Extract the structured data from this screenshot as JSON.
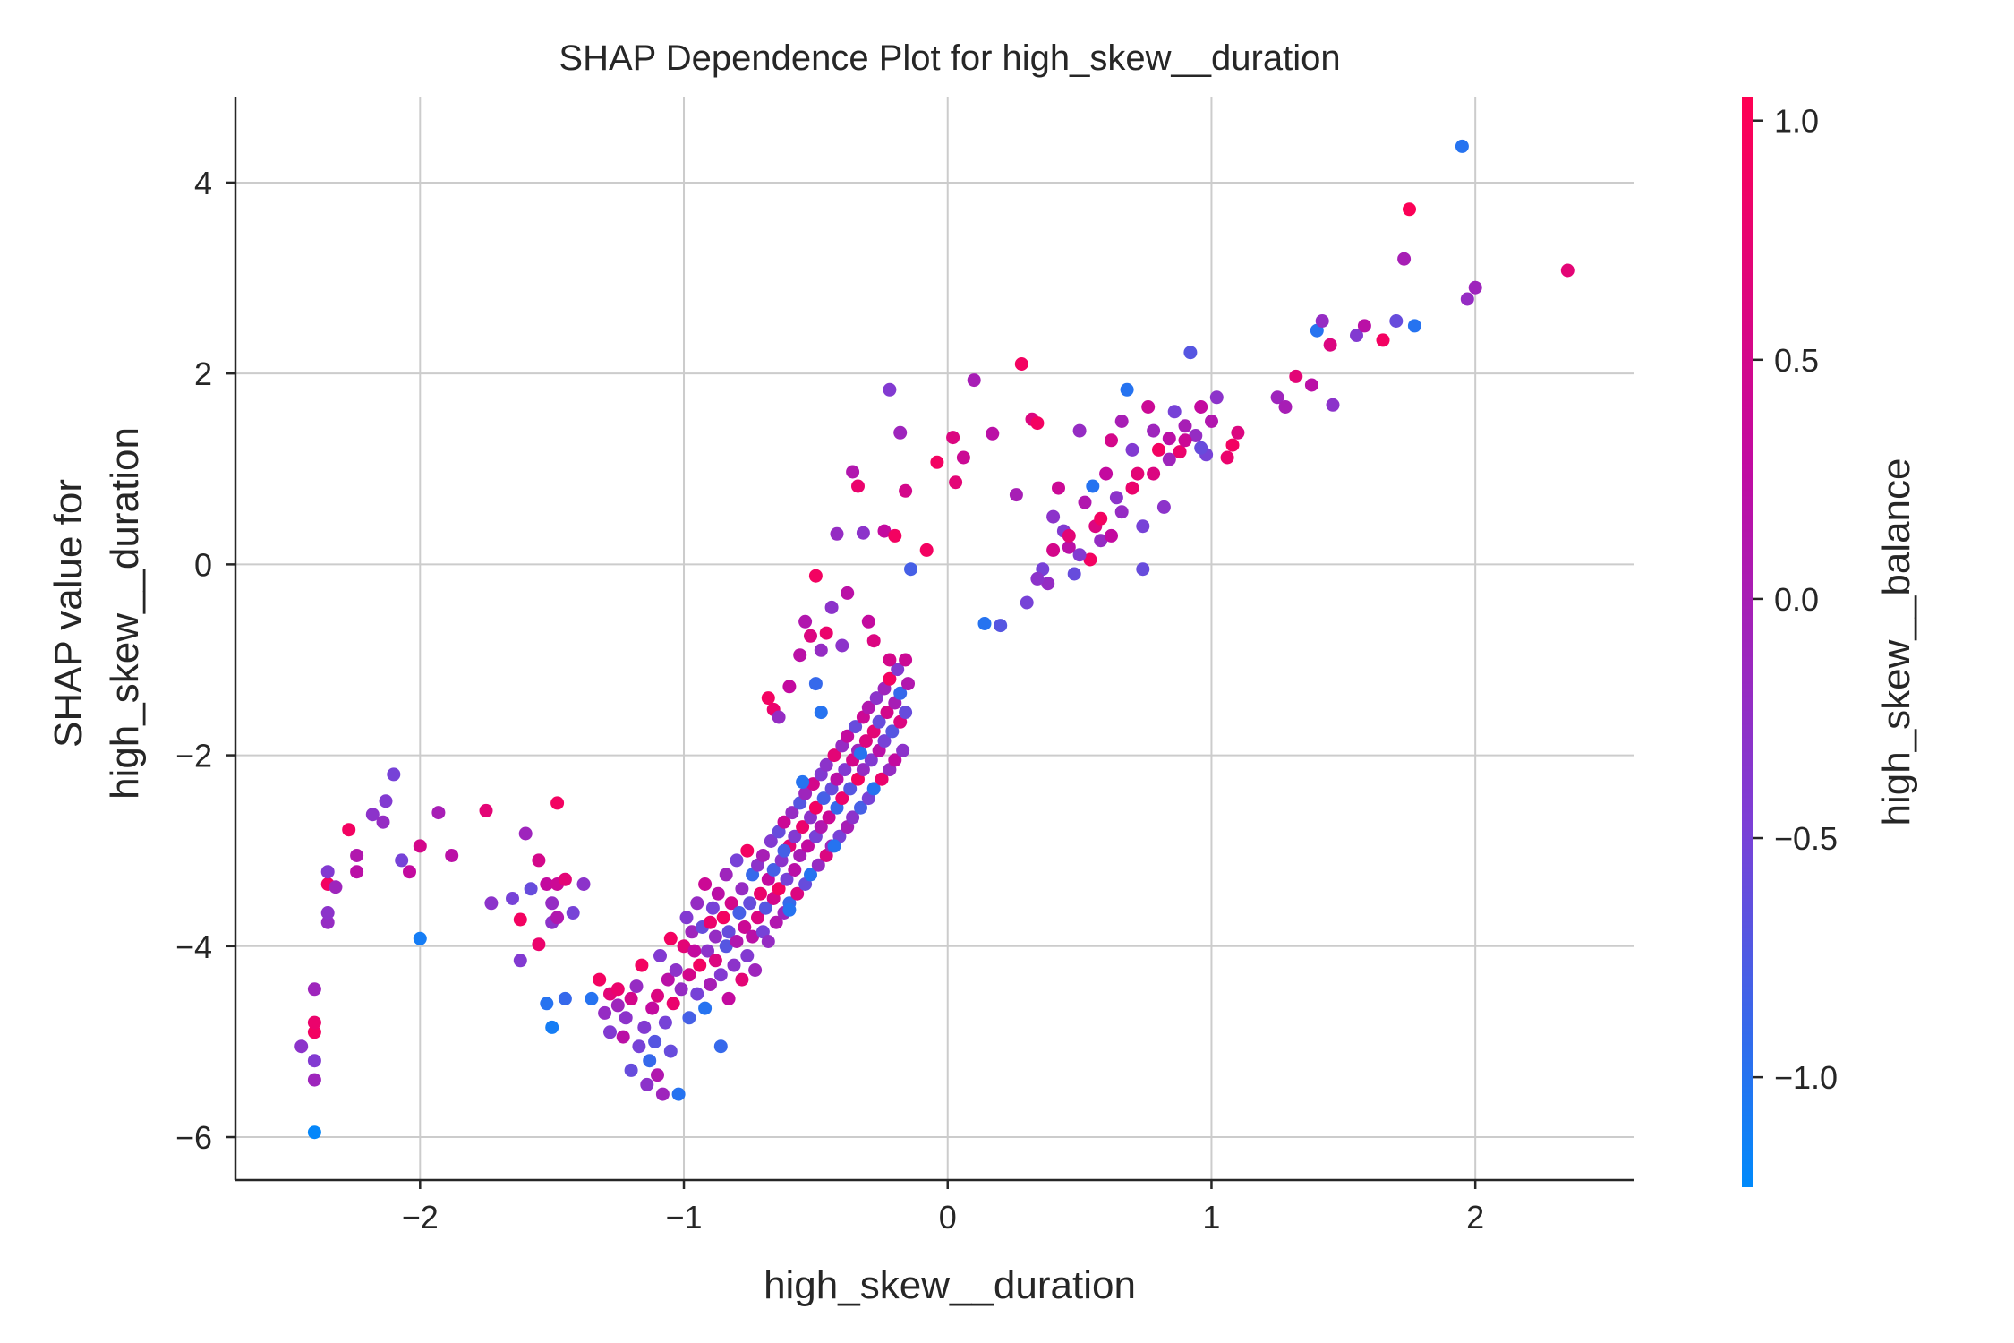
{
  "chart_data": {
    "type": "scatter",
    "title": "SHAP Dependence Plot for high_skew__duration",
    "xlabel": "high_skew__duration",
    "ylabel_lines": [
      "SHAP value for",
      "high_skew__duration"
    ],
    "colorbar_label": "high_skew__balance",
    "xlim": [
      -2.7,
      2.6
    ],
    "ylim": [
      -6.45,
      4.9
    ],
    "xticks": [
      -2,
      -1,
      0,
      1,
      2
    ],
    "xtick_labels": [
      "−2",
      "−1",
      "0",
      "1",
      "2"
    ],
    "yticks": [
      -6,
      -4,
      -2,
      0,
      2,
      4
    ],
    "ytick_labels": [
      "−6",
      "−4",
      "−2",
      "0",
      "2",
      "4"
    ],
    "color_range": [
      -1.23,
      1.05
    ],
    "color_stops": [
      "#008afb",
      "#7c3fd6",
      "#c20aa0",
      "#ff0052"
    ],
    "cticks": [
      -1.0,
      -0.5,
      0.0,
      0.5,
      1.0
    ],
    "ctick_labels": [
      "−1.0",
      "−0.5",
      "0.0",
      "0.5",
      "1.0"
    ],
    "grid": true,
    "points": [
      [
        -2.4,
        -5.95,
        -1.2
      ],
      [
        -2.45,
        -5.05,
        -0.3
      ],
      [
        -2.4,
        -5.2,
        -0.4
      ],
      [
        -2.4,
        -5.4,
        -0.1
      ],
      [
        -2.4,
        -4.9,
        0.9
      ],
      [
        -2.4,
        -4.8,
        0.8
      ],
      [
        -2.4,
        -4.45,
        -0.1
      ],
      [
        -2.35,
        -3.75,
        -0.2
      ],
      [
        -2.35,
        -3.65,
        -0.3
      ],
      [
        -2.35,
        -3.35,
        0.9
      ],
      [
        -2.35,
        -3.22,
        -0.4
      ],
      [
        -2.32,
        -3.38,
        -0.1
      ],
      [
        -2.27,
        -2.78,
        0.9
      ],
      [
        -2.24,
        -3.05,
        0.1
      ],
      [
        -2.24,
        -3.22,
        0.2
      ],
      [
        -2.18,
        -2.62,
        -0.3
      ],
      [
        -2.14,
        -2.7,
        -0.2
      ],
      [
        -2.13,
        -2.48,
        -0.4
      ],
      [
        -2.1,
        -2.2,
        -0.5
      ],
      [
        -2.07,
        -3.1,
        -0.5
      ],
      [
        -2.04,
        -3.22,
        0.3
      ],
      [
        -2.0,
        -2.95,
        0.5
      ],
      [
        -2.0,
        -3.92,
        -1.1
      ],
      [
        -1.93,
        -2.6,
        0.0
      ],
      [
        -1.88,
        -3.05,
        0.2
      ],
      [
        -1.75,
        -2.58,
        0.7
      ],
      [
        -1.73,
        -3.55,
        -0.3
      ],
      [
        -1.65,
        -3.5,
        -0.5
      ],
      [
        -1.62,
        -3.72,
        0.9
      ],
      [
        -1.62,
        -4.15,
        -0.4
      ],
      [
        -1.6,
        -2.82,
        -0.1
      ],
      [
        -1.58,
        -3.4,
        -0.6
      ],
      [
        -1.55,
        -3.98,
        0.8
      ],
      [
        -1.55,
        -3.1,
        0.5
      ],
      [
        -1.52,
        -3.35,
        0.3
      ],
      [
        -1.5,
        -3.55,
        -0.2
      ],
      [
        -1.5,
        -3.75,
        -0.3
      ],
      [
        -1.48,
        -3.35,
        0.4
      ],
      [
        -1.48,
        -3.7,
        0.1
      ],
      [
        -1.48,
        -2.5,
        0.9
      ],
      [
        -1.45,
        -3.3,
        0.7
      ],
      [
        -1.42,
        -3.65,
        -0.5
      ],
      [
        -1.38,
        -3.35,
        -0.3
      ],
      [
        -1.52,
        -4.6,
        -1.0
      ],
      [
        -1.5,
        -4.85,
        -1.1
      ],
      [
        -1.45,
        -4.55,
        -0.9
      ],
      [
        -1.35,
        -4.55,
        -1.0
      ],
      [
        -1.32,
        -4.35,
        0.9
      ],
      [
        -1.3,
        -4.7,
        -0.2
      ],
      [
        -1.28,
        -4.5,
        0.7
      ],
      [
        -1.28,
        -4.9,
        -0.4
      ],
      [
        -1.25,
        -4.62,
        -0.1
      ],
      [
        -1.25,
        -4.45,
        0.8
      ],
      [
        -1.23,
        -4.95,
        0.2
      ],
      [
        -1.22,
        -4.75,
        -0.3
      ],
      [
        -1.2,
        -4.55,
        0.5
      ],
      [
        -1.2,
        -5.3,
        -0.6
      ],
      [
        -1.18,
        -4.42,
        -0.2
      ],
      [
        -1.17,
        -5.05,
        -0.5
      ],
      [
        -1.16,
        -4.2,
        0.9
      ],
      [
        -1.15,
        -4.85,
        -0.4
      ],
      [
        -1.14,
        -5.45,
        -0.3
      ],
      [
        -1.13,
        -5.2,
        -0.9
      ],
      [
        -1.12,
        -4.65,
        0.3
      ],
      [
        -1.11,
        -5.0,
        -0.7
      ],
      [
        -1.1,
        -4.52,
        0.6
      ],
      [
        -1.1,
        -5.35,
        0.1
      ],
      [
        -1.09,
        -4.1,
        -0.4
      ],
      [
        -1.08,
        -5.55,
        -0.1
      ],
      [
        -1.07,
        -4.8,
        -0.5
      ],
      [
        -1.06,
        -4.35,
        0.2
      ],
      [
        -1.05,
        -3.92,
        0.9
      ],
      [
        -1.05,
        -5.1,
        -0.6
      ],
      [
        -1.04,
        -4.6,
        0.8
      ],
      [
        -1.03,
        -4.25,
        -0.3
      ],
      [
        -1.02,
        -5.55,
        -1.0
      ],
      [
        -1.01,
        -4.45,
        -0.2
      ],
      [
        -1.0,
        -4.0,
        0.7
      ],
      [
        -0.99,
        -3.7,
        -0.4
      ],
      [
        -0.98,
        -4.3,
        0.5
      ],
      [
        -0.98,
        -4.75,
        -0.8
      ],
      [
        -0.97,
        -3.85,
        -0.1
      ],
      [
        -0.96,
        -4.05,
        0.3
      ],
      [
        -0.95,
        -4.5,
        -0.5
      ],
      [
        -0.95,
        -3.55,
        -0.2
      ],
      [
        -0.94,
        -4.2,
        0.9
      ],
      [
        -0.93,
        -3.8,
        -0.6
      ],
      [
        -0.92,
        -4.65,
        -1.0
      ],
      [
        -0.92,
        -3.35,
        0.4
      ],
      [
        -0.91,
        -4.05,
        -0.3
      ],
      [
        -0.9,
        -3.75,
        0.8
      ],
      [
        -0.9,
        -4.4,
        0.0
      ],
      [
        -0.89,
        -3.6,
        -0.5
      ],
      [
        -0.88,
        -4.15,
        0.6
      ],
      [
        -0.88,
        -3.9,
        -0.2
      ],
      [
        -0.87,
        -3.45,
        0.2
      ],
      [
        -0.86,
        -4.3,
        -0.4
      ],
      [
        -0.86,
        -5.05,
        -0.9
      ],
      [
        -0.85,
        -3.7,
        0.9
      ],
      [
        -0.84,
        -4.0,
        -0.7
      ],
      [
        -0.84,
        -3.25,
        -0.1
      ],
      [
        -0.83,
        -4.55,
        0.3
      ],
      [
        -0.83,
        -3.85,
        -0.6
      ],
      [
        -0.82,
        -3.55,
        0.5
      ],
      [
        -0.81,
        -4.2,
        -0.3
      ],
      [
        -0.8,
        -3.1,
        -0.5
      ],
      [
        -0.8,
        -3.95,
        0.1
      ],
      [
        -0.79,
        -3.65,
        -0.8
      ],
      [
        -0.78,
        -4.35,
        0.7
      ],
      [
        -0.78,
        -3.4,
        -0.2
      ],
      [
        -0.77,
        -3.8,
        0.4
      ],
      [
        -0.76,
        -4.1,
        -0.4
      ],
      [
        -0.76,
        -3.0,
        0.9
      ],
      [
        -0.75,
        -3.55,
        -0.6
      ],
      [
        -0.74,
        -3.9,
        0.2
      ],
      [
        -0.74,
        -3.25,
        -0.9
      ],
      [
        -0.73,
        -4.25,
        -0.1
      ],
      [
        -0.72,
        -3.7,
        0.6
      ],
      [
        -0.72,
        -3.15,
        -0.3
      ],
      [
        -0.71,
        -3.45,
        0.8
      ],
      [
        -0.7,
        -3.85,
        -0.5
      ],
      [
        -0.7,
        -3.05,
        0.0
      ],
      [
        -0.69,
        -3.6,
        -0.7
      ],
      [
        -0.68,
        -3.3,
        0.3
      ],
      [
        -0.68,
        -3.95,
        -0.2
      ],
      [
        -0.67,
        -2.9,
        -0.4
      ],
      [
        -0.66,
        -3.5,
        0.5
      ],
      [
        -0.66,
        -3.2,
        -0.8
      ],
      [
        -0.65,
        -3.75,
        0.1
      ],
      [
        -0.64,
        -2.8,
        -0.6
      ],
      [
        -0.64,
        -3.4,
        0.9
      ],
      [
        -0.63,
        -3.1,
        -0.3
      ],
      [
        -0.62,
        -3.65,
        -0.1
      ],
      [
        -0.62,
        -2.7,
        0.4
      ],
      [
        -0.61,
        -3.3,
        -0.5
      ],
      [
        -0.6,
        -2.95,
        0.7
      ],
      [
        -0.6,
        -3.55,
        -0.9
      ],
      [
        -0.59,
        -2.6,
        -0.2
      ],
      [
        -0.58,
        -3.2,
        0.2
      ],
      [
        -0.58,
        -2.85,
        -0.4
      ],
      [
        -0.57,
        -3.45,
        0.6
      ],
      [
        -0.56,
        -2.5,
        -0.7
      ],
      [
        -0.56,
        -3.05,
        0.0
      ],
      [
        -0.55,
        -2.75,
        0.8
      ],
      [
        -0.54,
        -3.35,
        -0.6
      ],
      [
        -0.54,
        -2.4,
        -0.1
      ],
      [
        -0.53,
        -2.95,
        0.3
      ],
      [
        -0.52,
        -2.65,
        -0.3
      ],
      [
        -0.52,
        -3.25,
        -1.0
      ],
      [
        -0.51,
        -2.3,
        0.5
      ],
      [
        -0.5,
        -2.85,
        -0.5
      ],
      [
        -0.5,
        -2.55,
        0.9
      ],
      [
        -0.49,
        -3.15,
        -0.2
      ],
      [
        -0.48,
        -2.2,
        -0.4
      ],
      [
        -0.48,
        -2.75,
        0.1
      ],
      [
        -0.47,
        -2.45,
        -0.8
      ],
      [
        -0.46,
        -3.05,
        0.6
      ],
      [
        -0.46,
        -2.1,
        -0.3
      ],
      [
        -0.45,
        -2.65,
        0.4
      ],
      [
        -0.44,
        -2.35,
        -0.6
      ],
      [
        -0.44,
        -2.95,
        -0.1
      ],
      [
        -0.43,
        -2.0,
        0.7
      ],
      [
        -0.42,
        -2.55,
        -0.9
      ],
      [
        -0.42,
        -2.25,
        0.2
      ],
      [
        -0.41,
        -2.85,
        -0.5
      ],
      [
        -0.4,
        -1.9,
        -0.2
      ],
      [
        -0.4,
        -2.45,
        0.8
      ],
      [
        -0.39,
        -2.15,
        -0.4
      ],
      [
        -0.38,
        -2.75,
        0.0
      ],
      [
        -0.38,
        -1.8,
        0.3
      ],
      [
        -0.37,
        -2.35,
        -0.7
      ],
      [
        -0.36,
        -2.05,
        0.5
      ],
      [
        -0.36,
        -2.65,
        -0.3
      ],
      [
        -0.35,
        -1.7,
        -0.6
      ],
      [
        -0.34,
        -2.25,
        0.9
      ],
      [
        -0.34,
        -1.95,
        -0.1
      ],
      [
        -0.33,
        -2.55,
        -0.8
      ],
      [
        -0.32,
        -1.6,
        0.4
      ],
      [
        -0.32,
        -2.15,
        -0.2
      ],
      [
        -0.31,
        -1.85,
        0.6
      ],
      [
        -0.3,
        -2.45,
        -0.5
      ],
      [
        -0.3,
        -1.5,
        0.1
      ],
      [
        -0.29,
        -2.05,
        -0.4
      ],
      [
        -0.28,
        -1.75,
        0.7
      ],
      [
        -0.28,
        -2.35,
        -1.0
      ],
      [
        -0.27,
        -1.4,
        -0.3
      ],
      [
        -0.26,
        -1.95,
        0.2
      ],
      [
        -0.26,
        -1.65,
        -0.6
      ],
      [
        -0.25,
        -2.25,
        0.8
      ],
      [
        -0.24,
        -1.3,
        -0.1
      ],
      [
        -0.24,
        -1.85,
        -0.5
      ],
      [
        -0.23,
        -1.55,
        0.5
      ],
      [
        -0.22,
        -2.15,
        -0.2
      ],
      [
        -0.22,
        -1.2,
        0.9
      ],
      [
        -0.21,
        -1.75,
        -0.7
      ],
      [
        -0.2,
        -1.45,
        0.0
      ],
      [
        -0.2,
        -2.05,
        0.3
      ],
      [
        -0.19,
        -1.1,
        -0.4
      ],
      [
        -0.18,
        -1.65,
        0.6
      ],
      [
        -0.18,
        -1.35,
        -0.9
      ],
      [
        -0.17,
        -1.95,
        -0.3
      ],
      [
        -0.16,
        -1.0,
        0.4
      ],
      [
        -0.16,
        -1.55,
        -0.6
      ],
      [
        -0.15,
        -1.25,
        0.1
      ],
      [
        -0.6,
        -3.62,
        -1.0
      ],
      [
        -0.62,
        -3.0,
        -0.8
      ],
      [
        -0.55,
        -2.28,
        -1.0
      ],
      [
        -0.5,
        -1.25,
        -0.9
      ],
      [
        -0.48,
        -1.55,
        -1.0
      ],
      [
        -0.43,
        -2.95,
        -1.0
      ],
      [
        -0.33,
        -1.98,
        -1.0
      ],
      [
        -0.68,
        -1.4,
        0.9
      ],
      [
        -0.66,
        -1.52,
        0.8
      ],
      [
        -0.64,
        -1.6,
        -0.2
      ],
      [
        -0.6,
        -1.28,
        0.3
      ],
      [
        -0.56,
        -0.95,
        0.2
      ],
      [
        -0.54,
        -0.6,
        0.1
      ],
      [
        -0.52,
        -0.75,
        0.6
      ],
      [
        -0.5,
        -0.12,
        0.9
      ],
      [
        -0.48,
        -0.9,
        -0.2
      ],
      [
        -0.46,
        -0.72,
        0.8
      ],
      [
        -0.44,
        -0.45,
        -0.3
      ],
      [
        -0.42,
        0.32,
        -0.2
      ],
      [
        -0.4,
        -0.85,
        -0.3
      ],
      [
        -0.38,
        -0.3,
        0.2
      ],
      [
        -0.36,
        0.97,
        0.1
      ],
      [
        -0.34,
        0.82,
        0.8
      ],
      [
        -0.32,
        0.33,
        -0.3
      ],
      [
        -0.3,
        -0.6,
        0.3
      ],
      [
        -0.28,
        -0.8,
        0.6
      ],
      [
        -0.24,
        0.35,
        0.3
      ],
      [
        -0.22,
        -1.0,
        0.5
      ],
      [
        -0.22,
        1.83,
        -0.4
      ],
      [
        -0.2,
        0.3,
        0.9
      ],
      [
        -0.18,
        1.38,
        -0.1
      ],
      [
        -0.16,
        0.77,
        0.5
      ],
      [
        -0.14,
        -0.05,
        -0.8
      ],
      [
        -0.08,
        0.15,
        0.9
      ],
      [
        -0.04,
        1.07,
        0.9
      ],
      [
        0.02,
        1.33,
        0.6
      ],
      [
        0.03,
        0.86,
        0.7
      ],
      [
        0.06,
        1.12,
        0.4
      ],
      [
        0.1,
        1.93,
        0.0
      ],
      [
        0.14,
        -0.62,
        -1.0
      ],
      [
        0.17,
        1.37,
        0.2
      ],
      [
        0.2,
        -0.64,
        -0.7
      ],
      [
        0.26,
        0.73,
        0.0
      ],
      [
        0.28,
        2.1,
        0.9
      ],
      [
        0.32,
        1.52,
        0.6
      ],
      [
        0.34,
        1.48,
        0.9
      ],
      [
        0.36,
        -0.05,
        -0.5
      ],
      [
        0.38,
        -0.2,
        -0.2
      ],
      [
        0.4,
        0.5,
        -0.3
      ],
      [
        0.42,
        0.8,
        0.4
      ],
      [
        0.44,
        0.35,
        -0.4
      ],
      [
        0.46,
        0.18,
        0.2
      ],
      [
        0.48,
        -0.1,
        -0.6
      ],
      [
        0.5,
        1.4,
        -0.2
      ],
      [
        0.52,
        0.65,
        0.1
      ],
      [
        0.54,
        0.05,
        0.9
      ],
      [
        0.55,
        0.82,
        -1.0
      ],
      [
        0.56,
        0.4,
        0.6
      ],
      [
        0.58,
        0.25,
        -0.2
      ],
      [
        0.6,
        0.95,
        0.3
      ],
      [
        0.62,
        1.3,
        0.5
      ],
      [
        0.64,
        0.7,
        -0.3
      ],
      [
        0.66,
        1.5,
        0.0
      ],
      [
        0.68,
        1.83,
        -1.0
      ],
      [
        0.7,
        1.2,
        -0.4
      ],
      [
        0.72,
        0.95,
        0.7
      ],
      [
        0.74,
        -0.05,
        -0.6
      ],
      [
        0.76,
        1.65,
        0.4
      ],
      [
        0.78,
        1.4,
        -0.1
      ],
      [
        0.8,
        1.2,
        0.9
      ],
      [
        0.82,
        0.6,
        -0.3
      ],
      [
        0.84,
        1.32,
        0.2
      ],
      [
        0.86,
        1.6,
        -0.5
      ],
      [
        0.88,
        1.18,
        0.8
      ],
      [
        0.9,
        1.45,
        0.0
      ],
      [
        0.92,
        2.22,
        -0.7
      ],
      [
        0.94,
        1.35,
        -0.2
      ],
      [
        0.96,
        1.65,
        0.3
      ],
      [
        0.98,
        1.15,
        -0.5
      ],
      [
        1.0,
        1.5,
        0.1
      ],
      [
        1.02,
        1.75,
        -0.3
      ],
      [
        1.08,
        1.25,
        0.9
      ],
      [
        1.1,
        1.38,
        0.6
      ],
      [
        1.25,
        1.75,
        -0.1
      ],
      [
        1.28,
        1.65,
        0.0
      ],
      [
        1.32,
        1.97,
        0.7
      ],
      [
        1.38,
        1.88,
        0.2
      ],
      [
        1.4,
        2.45,
        -1.0
      ],
      [
        1.42,
        2.55,
        -0.2
      ],
      [
        1.45,
        2.3,
        0.6
      ],
      [
        1.46,
        1.67,
        -0.3
      ],
      [
        1.55,
        2.4,
        -0.4
      ],
      [
        1.58,
        2.5,
        0.2
      ],
      [
        1.65,
        2.35,
        0.9
      ],
      [
        1.7,
        2.55,
        -0.6
      ],
      [
        1.73,
        3.2,
        0.0
      ],
      [
        1.75,
        3.72,
        1.0
      ],
      [
        1.77,
        2.5,
        -1.0
      ],
      [
        1.95,
        4.38,
        -1.0
      ],
      [
        1.97,
        2.78,
        -0.2
      ],
      [
        2.0,
        2.9,
        -0.1
      ],
      [
        2.35,
        3.08,
        0.7
      ],
      [
        0.3,
        -0.4,
        -0.5
      ],
      [
        0.34,
        -0.15,
        -0.3
      ],
      [
        0.4,
        0.15,
        0.5
      ],
      [
        0.46,
        0.3,
        0.7
      ],
      [
        0.5,
        0.1,
        -0.4
      ],
      [
        0.58,
        0.48,
        0.9
      ],
      [
        0.62,
        0.3,
        0.3
      ],
      [
        0.66,
        0.55,
        -0.2
      ],
      [
        0.7,
        0.8,
        0.8
      ],
      [
        0.74,
        0.4,
        -0.5
      ],
      [
        0.78,
        0.95,
        0.6
      ],
      [
        0.84,
        1.1,
        -0.1
      ],
      [
        0.9,
        1.3,
        0.4
      ],
      [
        0.96,
        1.22,
        -0.6
      ],
      [
        1.06,
        1.12,
        0.8
      ]
    ]
  }
}
